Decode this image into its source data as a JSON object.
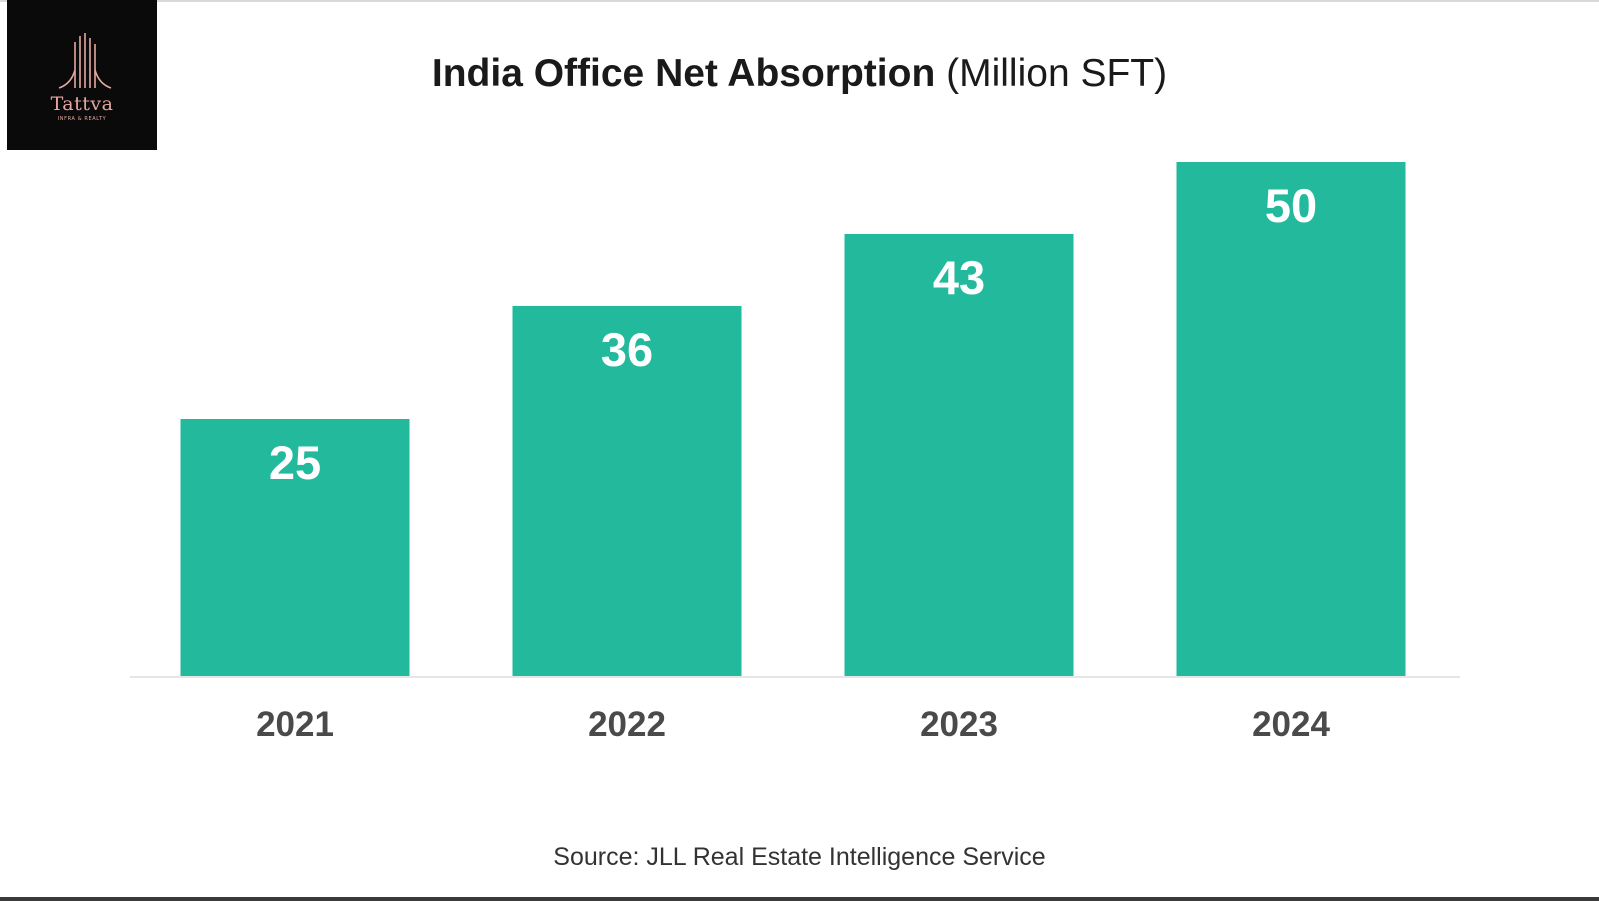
{
  "brand": {
    "logo_name": "Tattva",
    "logo_tagline": "INFRA & REALTY",
    "background_color": "#0a0a0a",
    "accent_color": "#e6a7a0"
  },
  "chart_data": {
    "type": "bar",
    "title": "India Office Net Absorption",
    "unit_label": "(Million SFT)",
    "categories": [
      "2021",
      "2022",
      "2023",
      "2024"
    ],
    "values": [
      25,
      36,
      43,
      50
    ],
    "xlabel": "",
    "ylabel": "",
    "ylim": [
      0,
      50
    ],
    "grid": false,
    "legend": "none",
    "bar_color": "#22b99c",
    "value_label_color": "#ffffff",
    "tick_label_color": "#4a4a4a"
  },
  "source": "Source: JLL Real Estate Intelligence Service"
}
